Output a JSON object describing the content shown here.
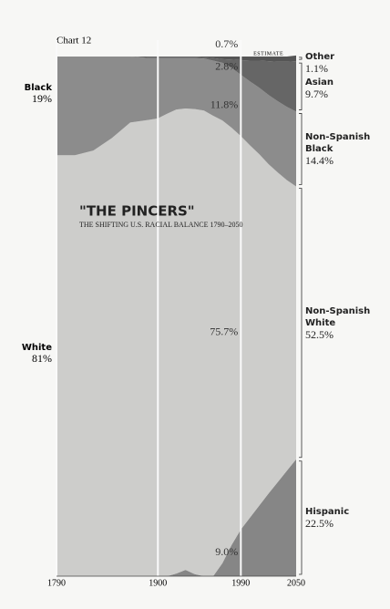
{
  "chart_data": {
    "type": "stacked-area",
    "label": "Chart 12",
    "title": "\"THE PINCERS\"",
    "subtitle": "THE SHIFTING U.S. RACIAL BALANCE 1790–2050",
    "estimate_label": "ESTIMATE",
    "x": [
      1790,
      1810,
      1830,
      1850,
      1870,
      1890,
      1900,
      1910,
      1920,
      1930,
      1940,
      1950,
      1960,
      1970,
      1980,
      1990,
      2000,
      2010,
      2020,
      2030,
      2040,
      2050
    ],
    "xlim": [
      1790,
      2050
    ],
    "xticks": [
      1790,
      1900,
      1990,
      2050
    ],
    "ylim": [
      0,
      100
    ],
    "series": [
      {
        "name": "Hispanic",
        "color": "#868686",
        "values": [
          0,
          0,
          0,
          0,
          0,
          0,
          0,
          0,
          0.5,
          1.2,
          0.4,
          0,
          0,
          2.5,
          6.0,
          9.0,
          11.3,
          13.6,
          15.9,
          18.1,
          20.3,
          22.5
        ],
        "value_labels": [
          null,
          null,
          null,
          null,
          null,
          null,
          null,
          null,
          null,
          null,
          null,
          null,
          null,
          null,
          null,
          "9.0%",
          null,
          null,
          null,
          null,
          null,
          "22.5%"
        ]
      },
      {
        "name": "Non-Spanish White",
        "start_name": "White",
        "color": "#cdcdcb",
        "values": [
          81,
          81,
          81.9,
          84.3,
          87.3,
          87.8,
          88.1,
          89.0,
          89.3,
          88.8,
          89.5,
          89.6,
          88.6,
          85.2,
          80.3,
          75.7,
          71.6,
          67.6,
          63.4,
          59.6,
          55.9,
          52.5
        ],
        "value_labels": [
          "81%",
          null,
          null,
          null,
          null,
          null,
          null,
          null,
          null,
          null,
          null,
          null,
          null,
          null,
          null,
          "75.7%",
          null,
          null,
          null,
          null,
          null,
          "52.5%"
        ]
      },
      {
        "name": "Non-Spanish Black",
        "start_name": "Black",
        "color": "#8c8c8c",
        "values": [
          19,
          19,
          18.1,
          15.7,
          12.7,
          11.9,
          11.6,
          10.7,
          9.9,
          9.7,
          9.8,
          10.0,
          10.6,
          11.1,
          11.5,
          11.8,
          12.3,
          12.8,
          13.3,
          13.7,
          14.1,
          14.4
        ],
        "value_labels": [
          "19%",
          null,
          null,
          null,
          null,
          null,
          null,
          null,
          null,
          null,
          null,
          null,
          null,
          null,
          null,
          "11.8%",
          null,
          null,
          null,
          null,
          null,
          "14.4%"
        ]
      },
      {
        "name": "Asian",
        "color": "#666666",
        "values": [
          0,
          0,
          0,
          0,
          0,
          0.2,
          0.2,
          0.2,
          0.2,
          0.2,
          0.2,
          0.2,
          0.5,
          0.7,
          1.6,
          2.8,
          4.0,
          5.2,
          6.5,
          7.6,
          8.7,
          9.7
        ],
        "value_labels": [
          null,
          null,
          null,
          null,
          null,
          null,
          null,
          null,
          null,
          null,
          null,
          null,
          null,
          null,
          null,
          "2.8%",
          null,
          null,
          null,
          null,
          null,
          "9.7%"
        ]
      },
      {
        "name": "Other",
        "color": "#555555",
        "values": [
          0,
          0,
          0,
          0,
          0,
          0.1,
          0.1,
          0.1,
          0.1,
          0.1,
          0.1,
          0.2,
          0.3,
          0.5,
          0.6,
          0.7,
          0.8,
          0.8,
          0.9,
          1.0,
          1.0,
          1.1
        ],
        "value_labels": [
          null,
          null,
          null,
          null,
          null,
          null,
          null,
          null,
          null,
          null,
          null,
          null,
          null,
          null,
          null,
          "0.7%",
          null,
          null,
          null,
          null,
          null,
          "1.1%"
        ]
      }
    ]
  }
}
